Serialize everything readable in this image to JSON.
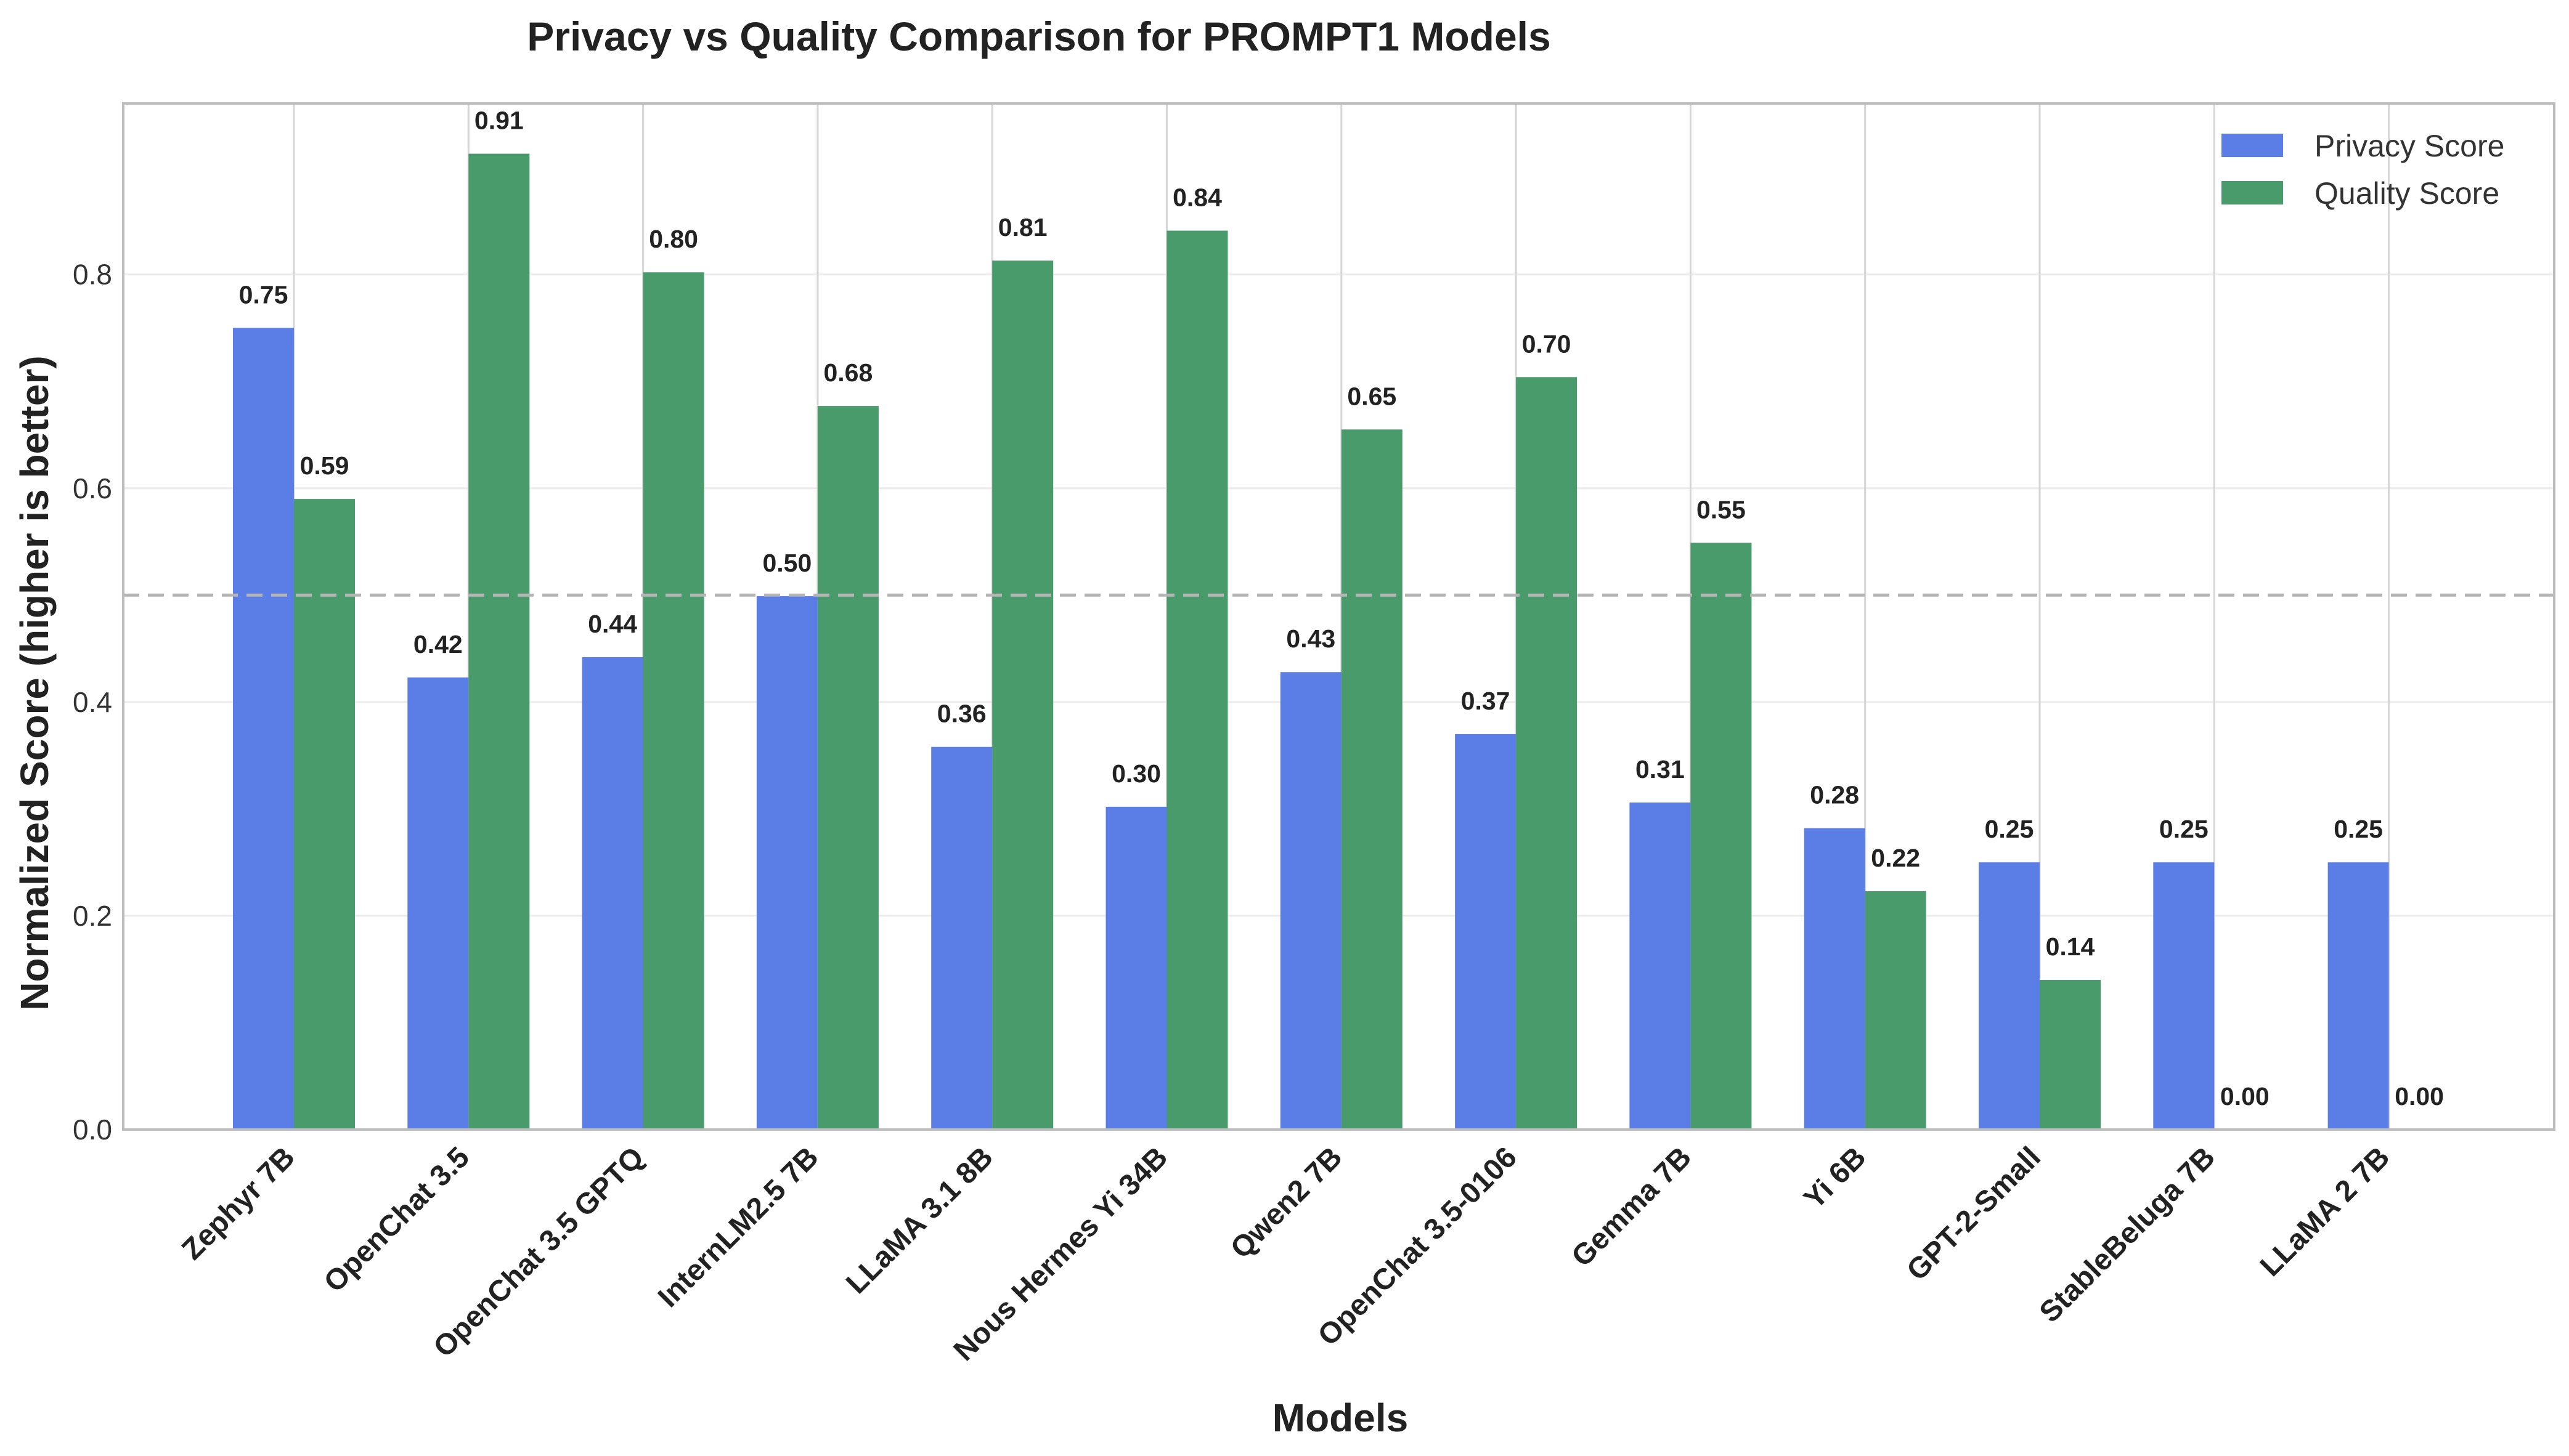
{
  "chart_data": {
    "type": "bar",
    "title": "Privacy vs Quality Comparison for PROMPT1 Models",
    "xlabel": "Models",
    "ylabel": "Normalized Score (higher is better)",
    "ylim": [
      0,
      0.96
    ],
    "yticks": [
      "0.0",
      "0.2",
      "0.4",
      "0.6",
      "0.8"
    ],
    "grid": true,
    "reference_line": 0.5,
    "legend_position": "top-right",
    "categories": [
      "Zephyr 7B",
      "OpenChat 3.5",
      "OpenChat 3.5 GPTQ",
      "InternLM2.5 7B",
      "LLaMA 3.1 8B",
      "Nous Hermes Yi 34B",
      "Qwen2 7B",
      "OpenChat 3.5-0106",
      "Gemma 7B",
      "Yi 6B",
      "GPT-2-Small",
      "StableBeluga 7B",
      "LLaMA 2 7B"
    ],
    "series": [
      {
        "name": "Privacy Score",
        "color": "#5a7de6",
        "values": [
          0.75,
          0.423,
          0.442,
          0.499,
          0.358,
          0.302,
          0.428,
          0.37,
          0.306,
          0.282,
          0.25,
          0.25,
          0.25
        ],
        "labels": [
          "0.75",
          "0.42",
          "0.44",
          "0.50",
          "0.36",
          "0.30",
          "0.43",
          "0.37",
          "0.31",
          "0.28",
          "0.25",
          "0.25",
          "0.25"
        ]
      },
      {
        "name": "Quality Score",
        "color": "#4a9b6c",
        "values": [
          0.59,
          0.913,
          0.802,
          0.677,
          0.813,
          0.841,
          0.655,
          0.704,
          0.549,
          0.223,
          0.14,
          0.0,
          0.0
        ],
        "labels": [
          "0.59",
          "0.91",
          "0.80",
          "0.68",
          "0.81",
          "0.84",
          "0.65",
          "0.70",
          "0.55",
          "0.22",
          "0.14",
          "0.00",
          "0.00"
        ]
      }
    ]
  }
}
